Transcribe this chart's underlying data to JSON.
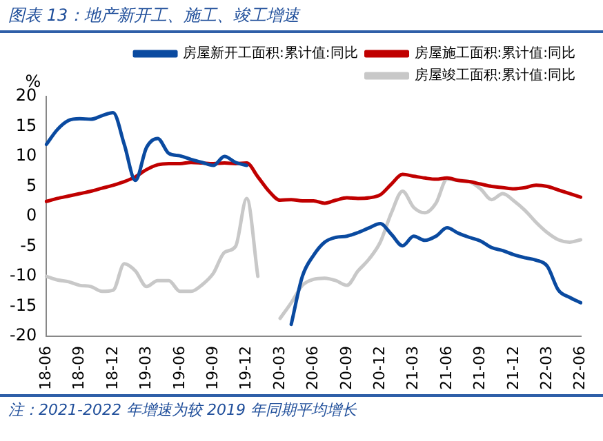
{
  "chart_data": {
    "type": "line",
    "title": "图表 13：地产新开工、施工、竣工增速",
    "ylabel": "%",
    "annotations": [
      "注：2021-2022 年增速为较 2019 年同期平均增长"
    ],
    "categories": [
      "18-06",
      null,
      null,
      "18-09",
      null,
      null,
      "18-12",
      null,
      null,
      "19-03",
      null,
      null,
      "19-06",
      null,
      null,
      "19-09",
      null,
      null,
      "19-12",
      null,
      null,
      "20-03",
      null,
      null,
      "20-06",
      null,
      null,
      "20-09",
      null,
      null,
      "20-12",
      null,
      null,
      "21-03",
      null,
      null,
      "21-06",
      null,
      null,
      "21-09",
      null,
      null,
      "21-12",
      null,
      null,
      "22-03",
      null,
      null,
      "22-06"
    ],
    "series": [
      {
        "name": "房屋新开工面积:累计值:同比",
        "color": "#0a4aa0",
        "values": [
          12,
          14.5,
          16,
          16.3,
          16.2,
          16.8,
          17.3,
          12,
          6,
          11.5,
          13,
          10.5,
          10.1,
          9.5,
          9,
          8.5,
          10,
          9,
          8.5,
          null,
          null,
          null,
          -18,
          -10,
          -6.5,
          -4.3,
          -3.5,
          -3.3,
          -2.7,
          -1.9,
          -1.2,
          -3,
          -4.9,
          -3.3,
          -4,
          -3.3,
          -1.9,
          -2.8,
          -3.5,
          -4.1,
          -5.2,
          -5.7,
          -6.4,
          -6.9,
          -7.3,
          -8.3,
          -12.3,
          -13.5,
          -14.4
        ]
      },
      {
        "name": "房屋施工面积:累计值:同比",
        "color": "#c00000",
        "values": [
          2.5,
          3,
          3.4,
          3.8,
          4.2,
          4.7,
          5.2,
          5.8,
          6.6,
          7.8,
          8.6,
          8.8,
          8.8,
          9,
          8.9,
          8.8,
          8.9,
          8.8,
          8.9,
          6.6,
          4.2,
          2.7,
          2.8,
          2.6,
          2.6,
          2.2,
          2.7,
          3.1,
          3,
          3.1,
          3.6,
          5.4,
          7,
          6.7,
          6.4,
          6.2,
          6.4,
          6,
          5.8,
          5.4,
          5,
          4.8,
          4.6,
          4.8,
          5.2,
          5,
          4.4,
          3.8,
          3.2
        ]
      },
      {
        "name": "房屋竣工面积:累计值:同比",
        "color": "#c8c8c8",
        "values": [
          -10,
          -10.6,
          -10.9,
          -11.5,
          -11.7,
          -12.5,
          -12.3,
          -7.9,
          -9.1,
          -11.7,
          -10.7,
          -10.7,
          -12.5,
          -12.5,
          -11.4,
          -9.5,
          -6,
          -5,
          3,
          -10,
          null,
          -17,
          -14.4,
          -11.5,
          -10.5,
          -10.3,
          -10.7,
          -11.5,
          -9.1,
          -7.1,
          -4.3,
          0.6,
          4.2,
          1.5,
          0.6,
          2.2,
          6.2,
          6,
          5.8,
          4.6,
          2.8,
          3.8,
          2.6,
          1,
          -1,
          -2.7,
          -3.9,
          -4.3,
          -3.9
        ]
      }
    ],
    "ylim": [
      -20,
      20
    ],
    "yticks": [
      -20,
      -15,
      -10,
      -5,
      0,
      5,
      10,
      15,
      20
    ],
    "grid": false,
    "legend": "top",
    "marker": "none",
    "line_style": "solid"
  }
}
